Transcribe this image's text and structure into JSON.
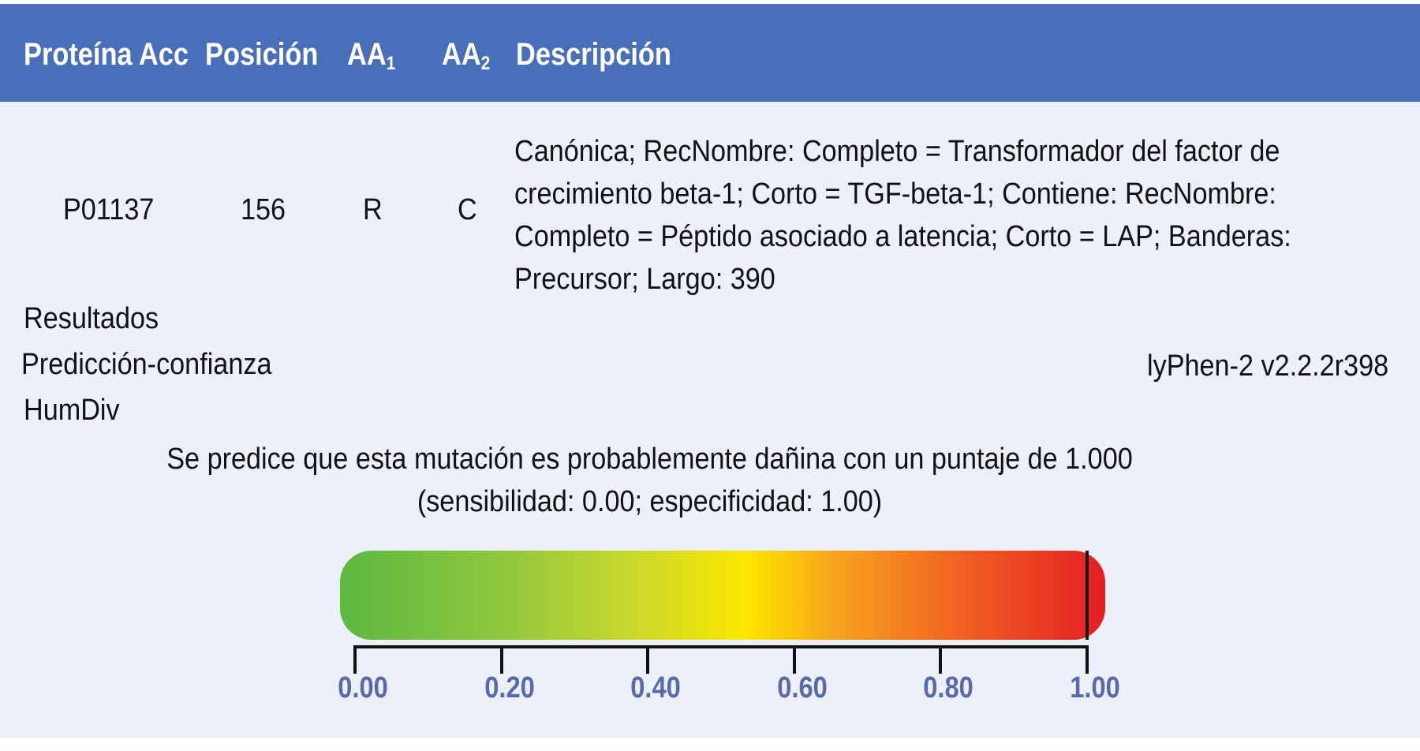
{
  "header": {
    "col_protein": "Proteína Acc",
    "col_position": "Posición",
    "col_aa1": "AA",
    "col_aa1_sub": "1",
    "col_aa2": "AA",
    "col_aa2_sub": "2",
    "col_description": "Descripción"
  },
  "row": {
    "protein": "P01137",
    "position": "156",
    "aa1": "R",
    "aa2": "C",
    "description_lines": [
      "Canónica; RecNombre: Completo = Transformador del factor de",
      "crecimiento beta-1; Corto = TGF-beta-1; Contiene: RecNombre:",
      "Completo = Péptido asociado a latencia; Corto = LAP; Banderas:",
      "Precursor; Largo: 390"
    ]
  },
  "results": {
    "label_results": "Resultados",
    "label_prediction": "Predicción-confianza",
    "label_model": "HumDiv",
    "version": "lyPhen-2 v2.2.2r398",
    "prediction_line1": "Se predice que esta mutación es probablemente dañina con un puntaje de 1.000",
    "prediction_line2": "(sensibilidad: 0.00; especificidad: 1.00)"
  },
  "score_bar": {
    "score": 1.0,
    "min": 0,
    "max": 1,
    "tick_labels": [
      "0.00",
      "0.20",
      "0.40",
      "0.60",
      "0.80",
      "1.00"
    ],
    "color_low": "#5cb940",
    "color_mid": "#fde700",
    "color_high": "#e31e24",
    "tick_label_color": "#5a6aa8"
  },
  "colors": {
    "header_bg": "#4a6fba",
    "panel_bg": "#ebf0fb"
  }
}
